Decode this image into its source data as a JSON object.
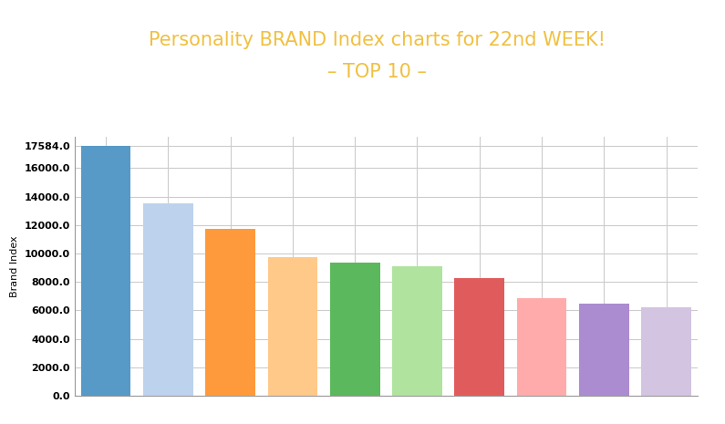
{
  "chart_data": {
    "type": "bar",
    "title": "Personality BRAND Index charts for 22nd WEEK!",
    "subtitle": "– TOP 10 –",
    "y_label": "Brand Index",
    "categories": [
      null,
      null,
      null,
      null,
      null,
      null,
      null,
      null,
      null,
      null
    ],
    "values": [
      17584,
      13550,
      11700,
      9750,
      9380,
      9120,
      8250,
      6850,
      6450,
      6230
    ],
    "colors": [
      "#5799c7",
      "#bdd2ec",
      "#ff9a3c",
      "#ffc989",
      "#5cb85c",
      "#b0e39e",
      "#e05c5c",
      "#ffabab",
      "#ac8cd0",
      "#d3c4e2"
    ],
    "ylim": [
      0,
      18200
    ],
    "yticks": [
      {
        "value": 0,
        "label": "0.0"
      },
      {
        "value": 2000,
        "label": "2000.0"
      },
      {
        "value": 4000,
        "label": "4000.0"
      },
      {
        "value": 6000,
        "label": "6000.0"
      },
      {
        "value": 8000,
        "label": "8000.0"
      },
      {
        "value": 10000,
        "label": "10000.0"
      },
      {
        "value": 12000,
        "label": "12000.0"
      },
      {
        "value": 14000,
        "label": "14000.0"
      },
      {
        "value": 16000,
        "label": "16000.0"
      },
      {
        "value": 17584,
        "label": "17584.0"
      }
    ],
    "grid": true,
    "tick_labels": "y"
  }
}
